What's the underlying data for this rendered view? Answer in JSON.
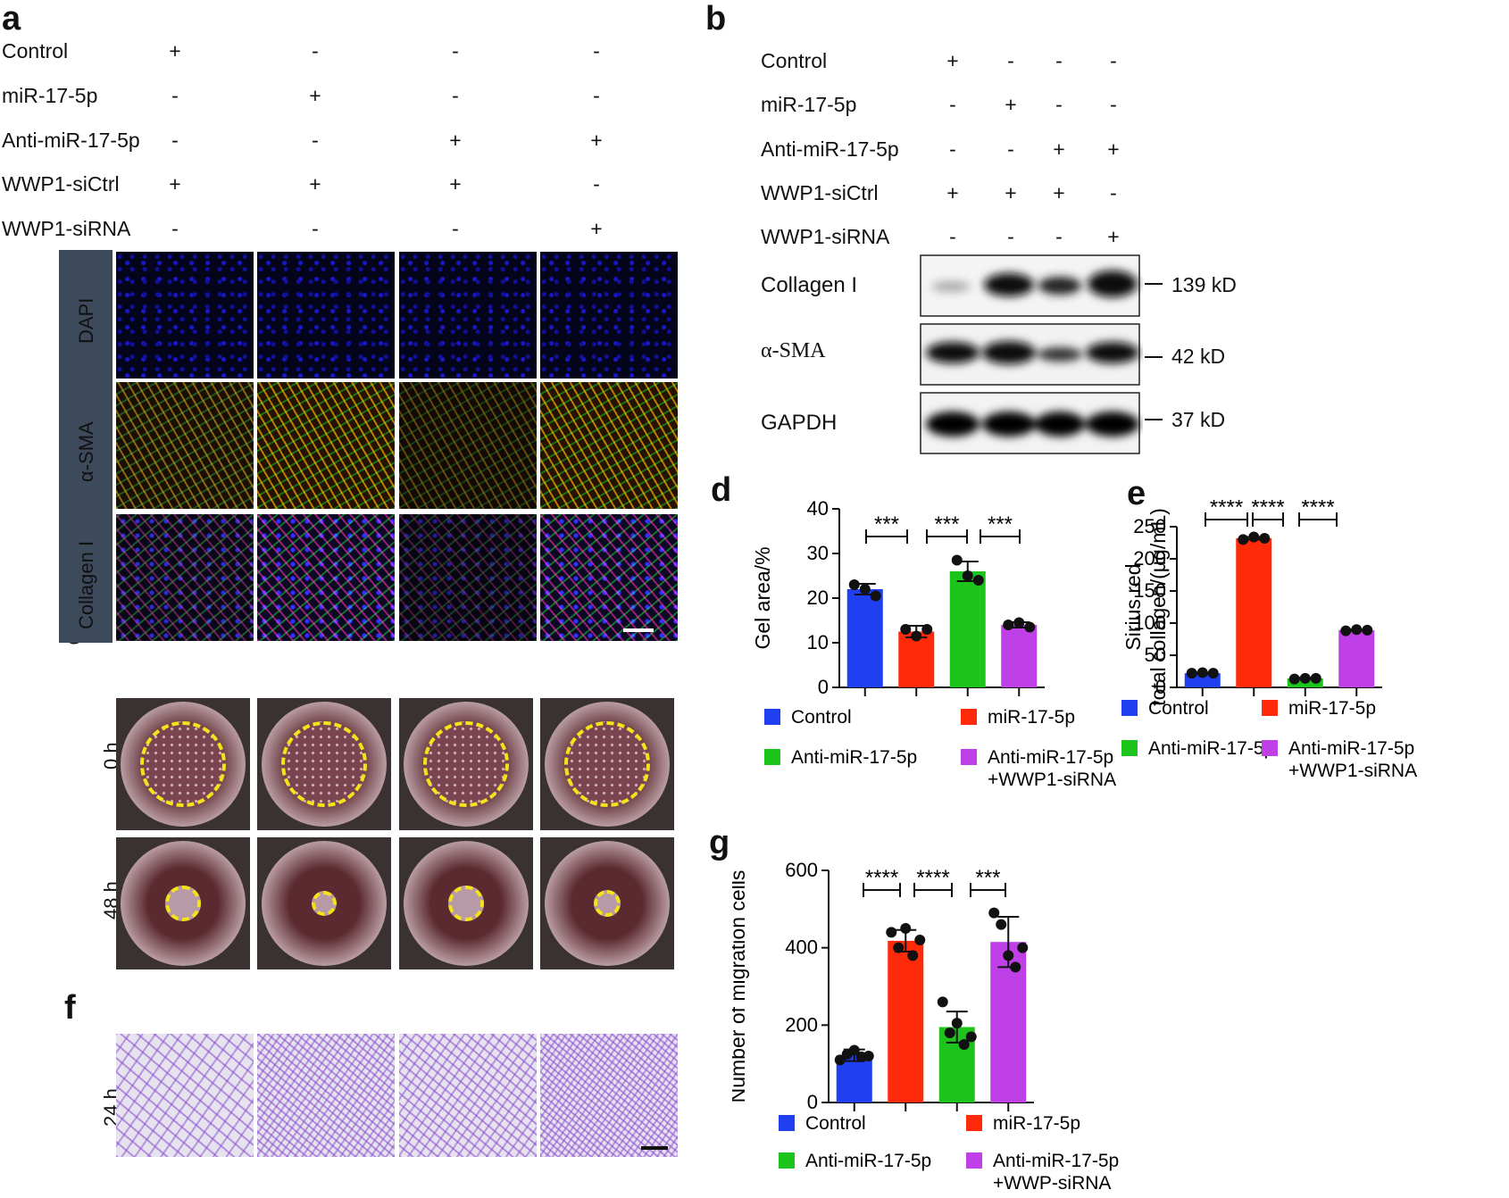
{
  "panels": {
    "a": "a",
    "b": "b",
    "c": "c",
    "d": "d",
    "e": "e",
    "f": "f",
    "g": "g"
  },
  "conditions": {
    "labels": [
      "Control",
      "miR-17-5p",
      "Anti-miR-17-5p",
      "WWP1-siCtrl",
      "WWP1-siRNA"
    ],
    "matrix": [
      [
        "+",
        "-",
        "-",
        "-"
      ],
      [
        "-",
        "+",
        "-",
        "-"
      ],
      [
        "-",
        "-",
        "+",
        "+"
      ],
      [
        "+",
        "+",
        "+",
        "-"
      ],
      [
        "-",
        "-",
        "-",
        "+"
      ]
    ]
  },
  "panel_a": {
    "stains": [
      "DAPI",
      "α-SMA",
      "Collagen I"
    ],
    "stain_colors": [
      "#2a2af0",
      "#e8202a",
      "#22b24a"
    ]
  },
  "panel_b": {
    "bands": [
      "Collagen I",
      "α-SMA",
      "GAPDH"
    ],
    "sizes": [
      "139 kD",
      "42 kD",
      "37 kD"
    ]
  },
  "panel_c": {
    "times": [
      "0 h",
      "48 h"
    ]
  },
  "panel_f": {
    "times": [
      "24 h"
    ]
  },
  "chart_data": [
    {
      "id": "d",
      "type": "bar",
      "categories": [
        "Control",
        "miR-17-5p",
        "Anti-miR-17-5p",
        "Anti-miR-17-5p\n+WWP1-siRNA"
      ],
      "values": [
        22,
        12.5,
        26,
        14
      ],
      "errors": [
        1.2,
        1.3,
        2.2,
        0.6
      ],
      "points": [
        [
          23,
          22,
          20.5
        ],
        [
          13,
          11.5,
          13
        ],
        [
          28.5,
          25,
          24
        ],
        [
          14,
          14.5,
          13.5
        ]
      ],
      "ylabel": "Gel area/%",
      "ylim": [
        0,
        40
      ],
      "yticks": [
        0,
        10,
        20,
        30,
        40
      ],
      "colors": [
        "#1f3ff0",
        "#ff2a0a",
        "#1cc41c",
        "#c040e8"
      ],
      "legend": [
        "Control",
        "miR-17-5p",
        "Anti-miR-17-5p",
        "Anti-miR-17-5p",
        "+WWP1-siRNA"
      ],
      "sig": [
        {
          "from": 0,
          "to": 1,
          "label": "***"
        },
        {
          "from": 2,
          "to": 3,
          "label": "***"
        },
        {
          "from": 3,
          "to": 2,
          "label": "***"
        }
      ]
    },
    {
      "id": "e",
      "type": "bar",
      "categories": [
        "Control",
        "miR-17-5p",
        "Anti-miR-17-5p",
        "Anti-miR-17-5p\n+WWP1-siRNA"
      ],
      "values": [
        22,
        232,
        14,
        89
      ],
      "errors": [
        1,
        2,
        1,
        1
      ],
      "points": [
        [
          22,
          23,
          22
        ],
        [
          230,
          234,
          232
        ],
        [
          13,
          14,
          14
        ],
        [
          88,
          90,
          89
        ]
      ],
      "ylabel": [
        "Sirius red",
        "total collagen/(μg/mL)"
      ],
      "ylim": [
        0,
        250
      ],
      "yticks": [
        0,
        50,
        100,
        150,
        200,
        250
      ],
      "colors": [
        "#1f3ff0",
        "#ff2a0a",
        "#1cc41c",
        "#c040e8"
      ],
      "legend": [
        "Control",
        "miR-17-5p",
        "Anti-miR-17-5p",
        "Anti-miR-17-5p",
        "+WWP1-siRNA"
      ],
      "sig": [
        "****",
        "****",
        "****"
      ]
    },
    {
      "id": "g",
      "type": "bar",
      "categories": [
        "Control",
        "miR-17-5p",
        "Anti-miR-17-5p",
        "Anti-miR-17-5p\n+WWP-siRNA"
      ],
      "values": [
        122,
        418,
        195,
        415
      ],
      "errors": [
        15,
        28,
        40,
        65
      ],
      "points": [
        [
          110,
          125,
          135,
          118,
          120
        ],
        [
          440,
          400,
          450,
          380,
          420
        ],
        [
          260,
          180,
          205,
          150,
          170
        ],
        [
          490,
          460,
          380,
          350,
          400
        ]
      ],
      "ylabel": "Number of migration cells",
      "ylim": [
        0,
        600
      ],
      "yticks": [
        0,
        200,
        400,
        600
      ],
      "colors": [
        "#1f3ff0",
        "#ff2a0a",
        "#1cc41c",
        "#c040e8"
      ],
      "legend": [
        "Control",
        "miR-17-5p",
        "Anti-miR-17-5p",
        "Anti-miR-17-5p",
        "+WWP-siRNA"
      ],
      "sig": [
        "****",
        "****",
        "***"
      ]
    }
  ]
}
